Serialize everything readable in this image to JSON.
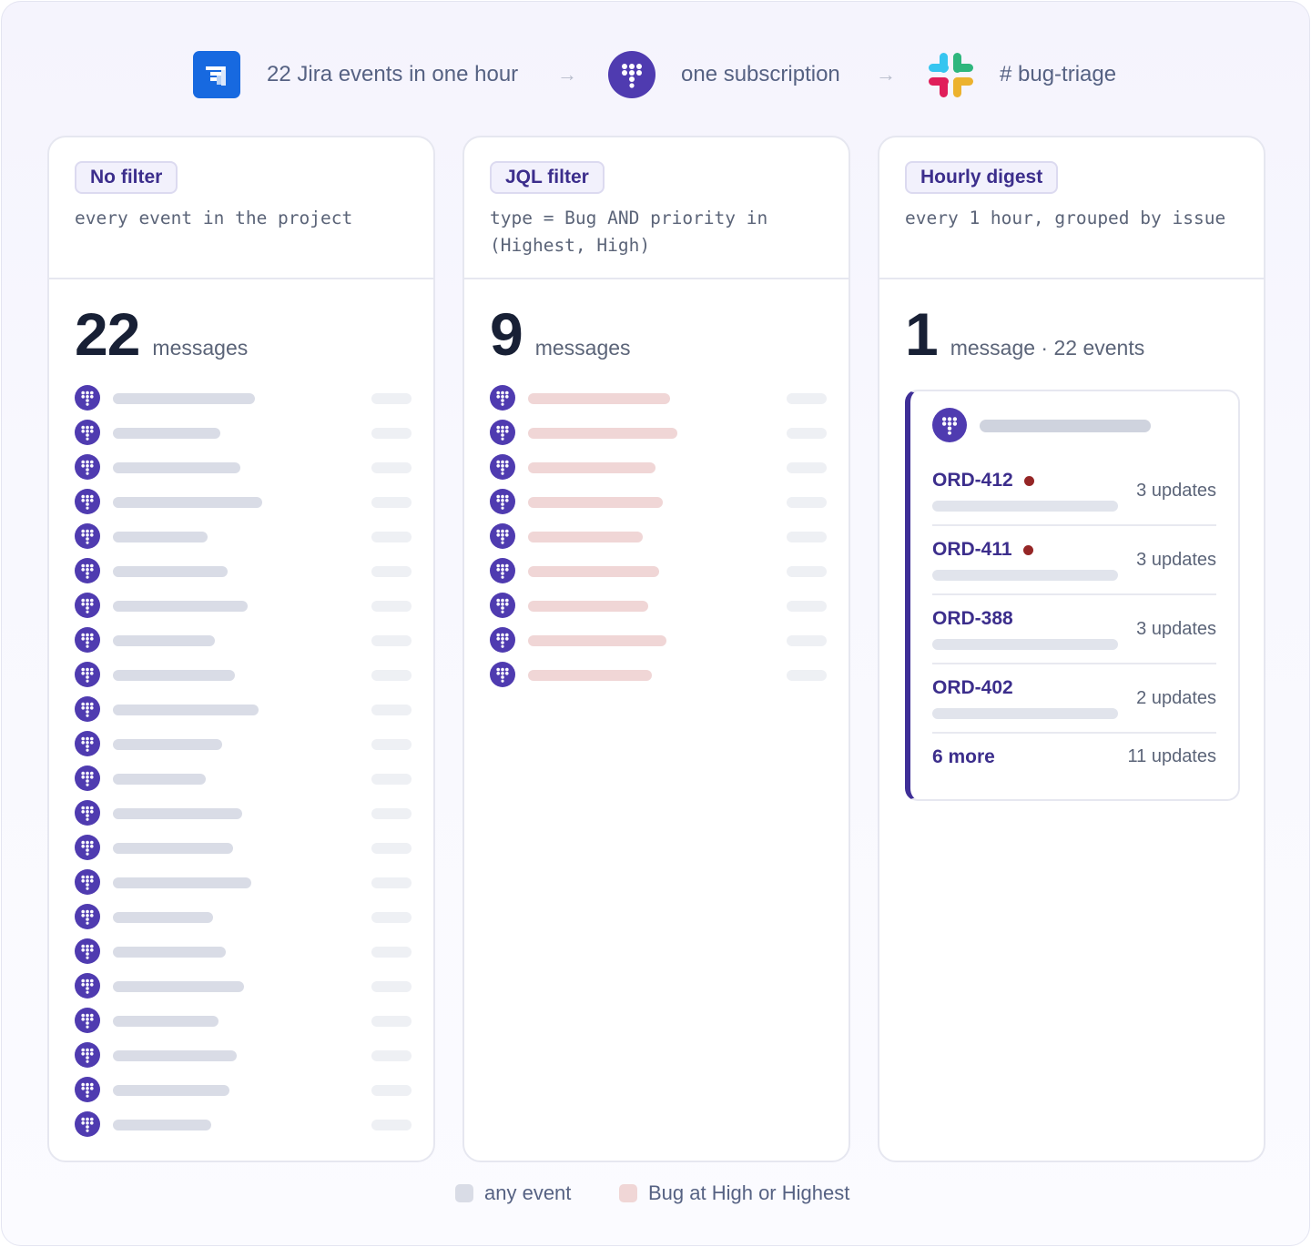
{
  "flow": {
    "source_label": "22 Jira events in one hour",
    "middle_label": "one subscription",
    "target_label": "# bug-triage",
    "arrow": "→",
    "icons": [
      "jira-icon",
      "app-icon",
      "slack-icon"
    ]
  },
  "columns": [
    {
      "badge": "No filter",
      "description": "every event in the project",
      "count": "22",
      "count_label": "messages"
    },
    {
      "badge": "JQL filter",
      "description": "type = Bug AND priority in\n(Highest, High)",
      "count": "9",
      "count_label": "messages"
    },
    {
      "badge": "Hourly digest",
      "description": "every 1 hour, grouped by issue",
      "count": "1",
      "count_label": "message · 22 events"
    }
  ],
  "digest": {
    "rows": [
      {
        "key": "ORD-412",
        "flagged": true,
        "count": "3 updates"
      },
      {
        "key": "ORD-411",
        "flagged": true,
        "count": "3 updates"
      },
      {
        "key": "ORD-388",
        "flagged": false,
        "count": "3 updates"
      },
      {
        "key": "ORD-402",
        "flagged": false,
        "count": "2 updates"
      },
      {
        "key": "6 more",
        "flagged": false,
        "count": "11 updates"
      }
    ]
  },
  "legend": {
    "any_event": "any event",
    "bug_high": "Bug at High or Highest"
  },
  "colors": {
    "accent": "#4f3bb0",
    "any_event": "#d9dce6",
    "bug_high": "#f0d6d6",
    "flag": "#952626"
  }
}
